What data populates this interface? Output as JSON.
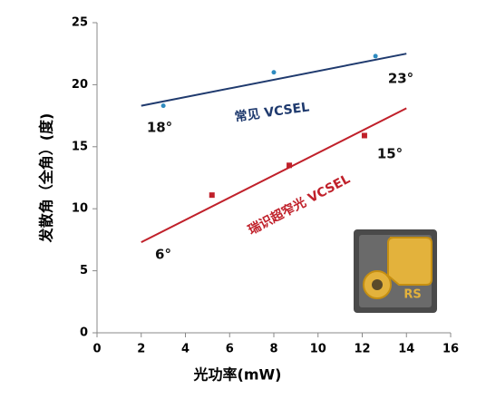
{
  "chart_data": {
    "type": "scatter",
    "x_label": "光功率(mW)",
    "y_label": "发散角（全角）(度)",
    "xlim": [
      0,
      16
    ],
    "xticks": [
      0,
      2,
      4,
      6,
      8,
      10,
      12,
      14,
      16
    ],
    "ylim": [
      0,
      25
    ],
    "yticks": [
      0,
      5,
      10,
      15,
      20,
      25
    ],
    "series": [
      {
        "color": "#2e8bc0",
        "marker": "circle",
        "x": [
          3,
          8,
          12.6
        ],
        "values": [
          18.3,
          21,
          22.3
        ]
      },
      {
        "color": "#1f3a6e",
        "mode": "line",
        "x": [
          2,
          14
        ],
        "values": [
          18.3,
          22.5
        ]
      },
      {
        "color": "#c0202a",
        "marker": "square",
        "x": [
          5.2,
          8.7,
          12.1
        ],
        "values": [
          11.1,
          13.5,
          15.9
        ]
      },
      {
        "color": "#c0202a",
        "mode": "line",
        "x": [
          2,
          14
        ],
        "values": [
          7.3,
          18.1
        ]
      }
    ],
    "annotations": [
      {
        "text": "常见 VCSEL",
        "color": "#1f3a6e"
      },
      {
        "text": "瑞识超窄光 VCSEL",
        "color": "#c0202a"
      },
      {
        "text": "18°",
        "color": "#111"
      },
      {
        "text": "23°",
        "color": "#111"
      },
      {
        "text": "6°",
        "color": "#111"
      },
      {
        "text": "15°",
        "color": "#111"
      }
    ],
    "inset_label": "RS"
  }
}
